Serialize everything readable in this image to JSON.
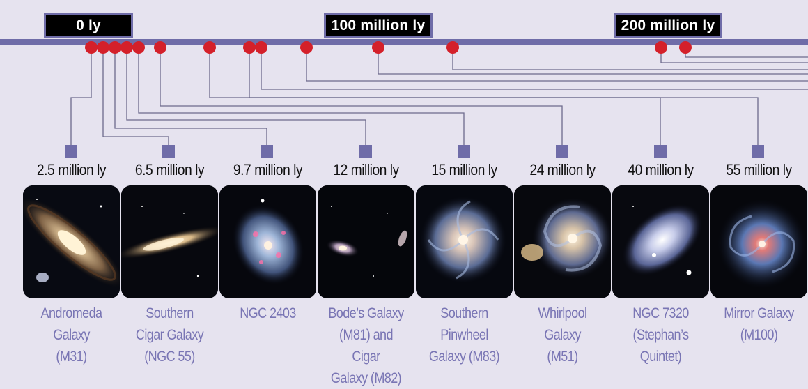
{
  "scale_labels": {
    "zero": "0 ly",
    "hundred": "100 million ly",
    "two_hundred": "200 million ly"
  },
  "colors": {
    "background": "#e6e3ef",
    "axis": "#6f6ca8",
    "marker": "#d4202a",
    "connector": "#6d6a8c",
    "name_text": "#7975b4"
  },
  "galaxies": [
    {
      "distance": "2.5 million ly",
      "name": "Andromeda Galaxy (M31)",
      "name_lines": [
        "Andromeda",
        "Galaxy",
        "(M31)"
      ]
    },
    {
      "distance": "6.5 million ly",
      "name": "Southern Cigar Galaxy (NGC 55)",
      "name_lines": [
        "Southern",
        "Cigar Galaxy",
        "(NGC 55)"
      ]
    },
    {
      "distance": "9.7 million ly",
      "name": "NGC 2403",
      "name_lines": [
        "NGC 2403"
      ]
    },
    {
      "distance": "12 million ly",
      "name": "Bode’s Galaxy (M81) and Cigar Galaxy (M82)",
      "name_lines": [
        "Bode’s Galaxy",
        "(M81) and Cigar",
        "Galaxy (M82)"
      ]
    },
    {
      "distance": "15 million ly",
      "name": "Southern Pinwheel Galaxy (M83)",
      "name_lines": [
        "Southern",
        "Pinwheel",
        "Galaxy (M83)"
      ]
    },
    {
      "distance": "24 million ly",
      "name": "Whirlpool Galaxy (M51)",
      "name_lines": [
        "Whirlpool Galaxy",
        "(M51)"
      ]
    },
    {
      "distance": "40 million ly",
      "name": "NGC 7320 (Stephan’s Quintet)",
      "name_lines": [
        "NGC 7320",
        "(Stephan’s",
        "Quintet)"
      ]
    },
    {
      "distance": "55 million ly",
      "name": "Mirror Galaxy (M100)",
      "name_lines": [
        "Mirror Galaxy",
        "(M100)"
      ]
    }
  ]
}
